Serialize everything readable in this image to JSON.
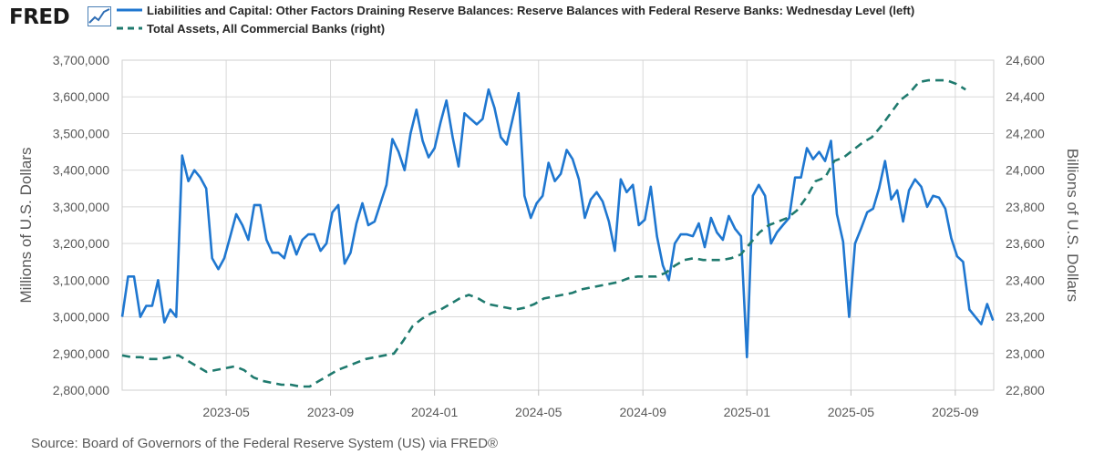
{
  "branding": {
    "logo_text": "FRED"
  },
  "source": "Source: Board of Governors of the Federal Reserve System (US) via FRED®",
  "colors": {
    "blue": "#1f77d0",
    "green": "#1f7a6e",
    "grid": "#d9d9d9"
  },
  "chart_data": {
    "type": "line",
    "legend": [
      {
        "label": "Liabilities and Capital: Other Factors Draining Reserve Balances: Reserve Balances with Federal Reserve Banks: Wednesday Level (left)",
        "style": "solid",
        "color": "#1f77d0"
      },
      {
        "label": "Total Assets, All Commercial Banks (right)",
        "style": "dashed",
        "color": "#1f7a6e"
      }
    ],
    "ylabel_left": "Millions of U.S. Dollars",
    "ylabel_right": "Billions of U.S. Dollars",
    "yleft_range": [
      2800000,
      3700000
    ],
    "yright_range": [
      22800,
      24600
    ],
    "x_range": [
      2023.0,
      2025.79
    ],
    "yleft_ticks": [
      "3,700,000",
      "3,600,000",
      "3,500,000",
      "3,400,000",
      "3,300,000",
      "3,200,000",
      "3,100,000",
      "3,000,000",
      "2,900,000",
      "2,800,000"
    ],
    "yleft_tick_values": [
      3700000,
      3600000,
      3500000,
      3400000,
      3300000,
      3200000,
      3100000,
      3000000,
      2900000,
      2800000
    ],
    "yright_ticks": [
      "24,600",
      "24,400",
      "24,200",
      "24,000",
      "23,800",
      "23,600",
      "23,400",
      "23,200",
      "23,000",
      "22,800"
    ],
    "yright_tick_values": [
      24600,
      24400,
      24200,
      24000,
      23800,
      23600,
      23400,
      23200,
      23000,
      22800
    ],
    "x_ticks": [
      "2023-05",
      "2023-09",
      "2024-01",
      "2024-05",
      "2024-09",
      "2025-01",
      "2025-05",
      "2025-09"
    ],
    "x_tick_values": [
      2023.333,
      2023.667,
      2024.0,
      2024.333,
      2024.667,
      2025.0,
      2025.333,
      2025.667
    ],
    "series": [
      {
        "name": "Reserve Balances with Federal Reserve Banks (left)",
        "axis": "left",
        "x": [
          2023.0,
          2023.019,
          2023.038,
          2023.058,
          2023.077,
          2023.096,
          2023.115,
          2023.135,
          2023.154,
          2023.173,
          2023.192,
          2023.212,
          2023.231,
          2023.25,
          2023.269,
          2023.288,
          2023.308,
          2023.327,
          2023.346,
          2023.365,
          2023.385,
          2023.404,
          2023.423,
          2023.442,
          2023.462,
          2023.481,
          2023.5,
          2023.519,
          2023.538,
          2023.558,
          2023.577,
          2023.596,
          2023.615,
          2023.635,
          2023.654,
          2023.673,
          2023.692,
          2023.712,
          2023.731,
          2023.75,
          2023.769,
          2023.788,
          2023.808,
          2023.827,
          2023.846,
          2023.865,
          2023.885,
          2023.904,
          2023.923,
          2023.942,
          2023.962,
          2023.981,
          2024.0,
          2024.019,
          2024.038,
          2024.058,
          2024.077,
          2024.096,
          2024.115,
          2024.135,
          2024.154,
          2024.173,
          2024.192,
          2024.212,
          2024.231,
          2024.25,
          2024.269,
          2024.288,
          2024.308,
          2024.327,
          2024.346,
          2024.365,
          2024.385,
          2024.404,
          2024.423,
          2024.442,
          2024.462,
          2024.481,
          2024.5,
          2024.519,
          2024.538,
          2024.558,
          2024.577,
          2024.596,
          2024.615,
          2024.635,
          2024.654,
          2024.673,
          2024.692,
          2024.712,
          2024.731,
          2024.75,
          2024.769,
          2024.788,
          2024.808,
          2024.827,
          2024.846,
          2024.865,
          2024.885,
          2024.904,
          2024.923,
          2024.942,
          2024.962,
          2024.981,
          2025.0,
          2025.019,
          2025.038,
          2025.058,
          2025.077,
          2025.096,
          2025.115,
          2025.135,
          2025.154,
          2025.173,
          2025.192,
          2025.212,
          2025.231,
          2025.25,
          2025.269,
          2025.288,
          2025.308,
          2025.327,
          2025.346,
          2025.365,
          2025.385,
          2025.404,
          2025.423,
          2025.442,
          2025.462,
          2025.481,
          2025.5,
          2025.519,
          2025.538,
          2025.558,
          2025.577,
          2025.596,
          2025.615,
          2025.635,
          2025.654,
          2025.673,
          2025.692,
          2025.712,
          2025.731,
          2025.75,
          2025.769,
          2025.788
        ],
        "values": [
          3000000,
          3110000,
          3110000,
          3000000,
          3030000,
          3030000,
          3100000,
          2985000,
          3020000,
          3000000,
          3440000,
          3370000,
          3400000,
          3380000,
          3350000,
          3160000,
          3130000,
          3160000,
          3220000,
          3280000,
          3250000,
          3210000,
          3305000,
          3305000,
          3210000,
          3175000,
          3175000,
          3160000,
          3220000,
          3170000,
          3210000,
          3225000,
          3225000,
          3180000,
          3200000,
          3285000,
          3305000,
          3145000,
          3175000,
          3255000,
          3310000,
          3250000,
          3260000,
          3310000,
          3360000,
          3485000,
          3450000,
          3400000,
          3500000,
          3565000,
          3480000,
          3435000,
          3460000,
          3530000,
          3590000,
          3490000,
          3410000,
          3555000,
          3540000,
          3525000,
          3540000,
          3620000,
          3570000,
          3490000,
          3470000,
          3540000,
          3610000,
          3330000,
          3270000,
          3310000,
          3330000,
          3420000,
          3370000,
          3390000,
          3455000,
          3430000,
          3375000,
          3270000,
          3320000,
          3340000,
          3315000,
          3260000,
          3180000,
          3375000,
          3340000,
          3360000,
          3250000,
          3265000,
          3355000,
          3220000,
          3140000,
          3100000,
          3200000,
          3225000,
          3225000,
          3220000,
          3255000,
          3190000,
          3270000,
          3230000,
          3210000,
          3275000,
          3240000,
          3220000,
          2890000,
          3330000,
          3360000,
          3330000,
          3200000,
          3230000,
          3250000,
          3270000,
          3380000,
          3380000,
          3460000,
          3430000,
          3450000,
          3425000,
          3480000,
          3280000,
          3205000,
          3000000,
          3200000,
          3240000,
          3285000,
          3295000,
          3350000,
          3425000,
          3320000,
          3345000,
          3260000,
          3345000,
          3375000,
          3355000,
          3300000,
          3330000,
          3325000,
          3295000,
          3215000,
          3165000,
          3150000,
          3020000,
          3000000,
          2980000,
          3035000,
          2990000
        ]
      },
      {
        "name": "Total Assets, All Commercial Banks (right)",
        "axis": "right",
        "x": [
          2023.0,
          2023.03,
          2023.06,
          2023.09,
          2023.12,
          2023.15,
          2023.18,
          2023.21,
          2023.24,
          2023.27,
          2023.3,
          2023.33,
          2023.36,
          2023.39,
          2023.42,
          2023.45,
          2023.48,
          2023.51,
          2023.54,
          2023.57,
          2023.6,
          2023.63,
          2023.66,
          2023.69,
          2023.72,
          2023.75,
          2023.78,
          2023.81,
          2023.84,
          2023.87,
          2023.9,
          2023.93,
          2023.96,
          2023.99,
          2024.02,
          2024.05,
          2024.08,
          2024.11,
          2024.14,
          2024.17,
          2024.2,
          2024.23,
          2024.26,
          2024.29,
          2024.32,
          2024.35,
          2024.38,
          2024.41,
          2024.44,
          2024.47,
          2024.5,
          2024.53,
          2024.56,
          2024.59,
          2024.62,
          2024.65,
          2024.68,
          2024.71,
          2024.74,
          2024.77,
          2024.8,
          2024.83,
          2024.86,
          2024.89,
          2024.92,
          2024.95,
          2024.98,
          2025.01,
          2025.04,
          2025.07,
          2025.1,
          2025.13,
          2025.16,
          2025.19,
          2025.22,
          2025.25,
          2025.28,
          2025.31,
          2025.34,
          2025.37,
          2025.4,
          2025.43,
          2025.46,
          2025.49,
          2025.52,
          2025.55,
          2025.58,
          2025.61,
          2025.64,
          2025.67,
          2025.7
        ],
        "values": [
          22990,
          22980,
          22980,
          22970,
          22970,
          22980,
          22990,
          22960,
          22930,
          22900,
          22910,
          22920,
          22930,
          22910,
          22870,
          22850,
          22840,
          22830,
          22830,
          22820,
          22820,
          22850,
          22880,
          22910,
          22930,
          22950,
          22970,
          22980,
          22990,
          23000,
          23070,
          23150,
          23190,
          23220,
          23240,
          23270,
          23300,
          23320,
          23300,
          23270,
          23260,
          23250,
          23240,
          23250,
          23270,
          23300,
          23310,
          23320,
          23330,
          23350,
          23360,
          23370,
          23380,
          23390,
          23410,
          23420,
          23420,
          23420,
          23440,
          23480,
          23510,
          23520,
          23510,
          23510,
          23510,
          23520,
          23540,
          23600,
          23660,
          23700,
          23720,
          23740,
          23780,
          23850,
          23940,
          23960,
          24050,
          24070,
          24110,
          24150,
          24180,
          24240,
          24310,
          24380,
          24420,
          24480,
          24490,
          24490,
          24490,
          24470,
          24440
        ]
      }
    ]
  }
}
